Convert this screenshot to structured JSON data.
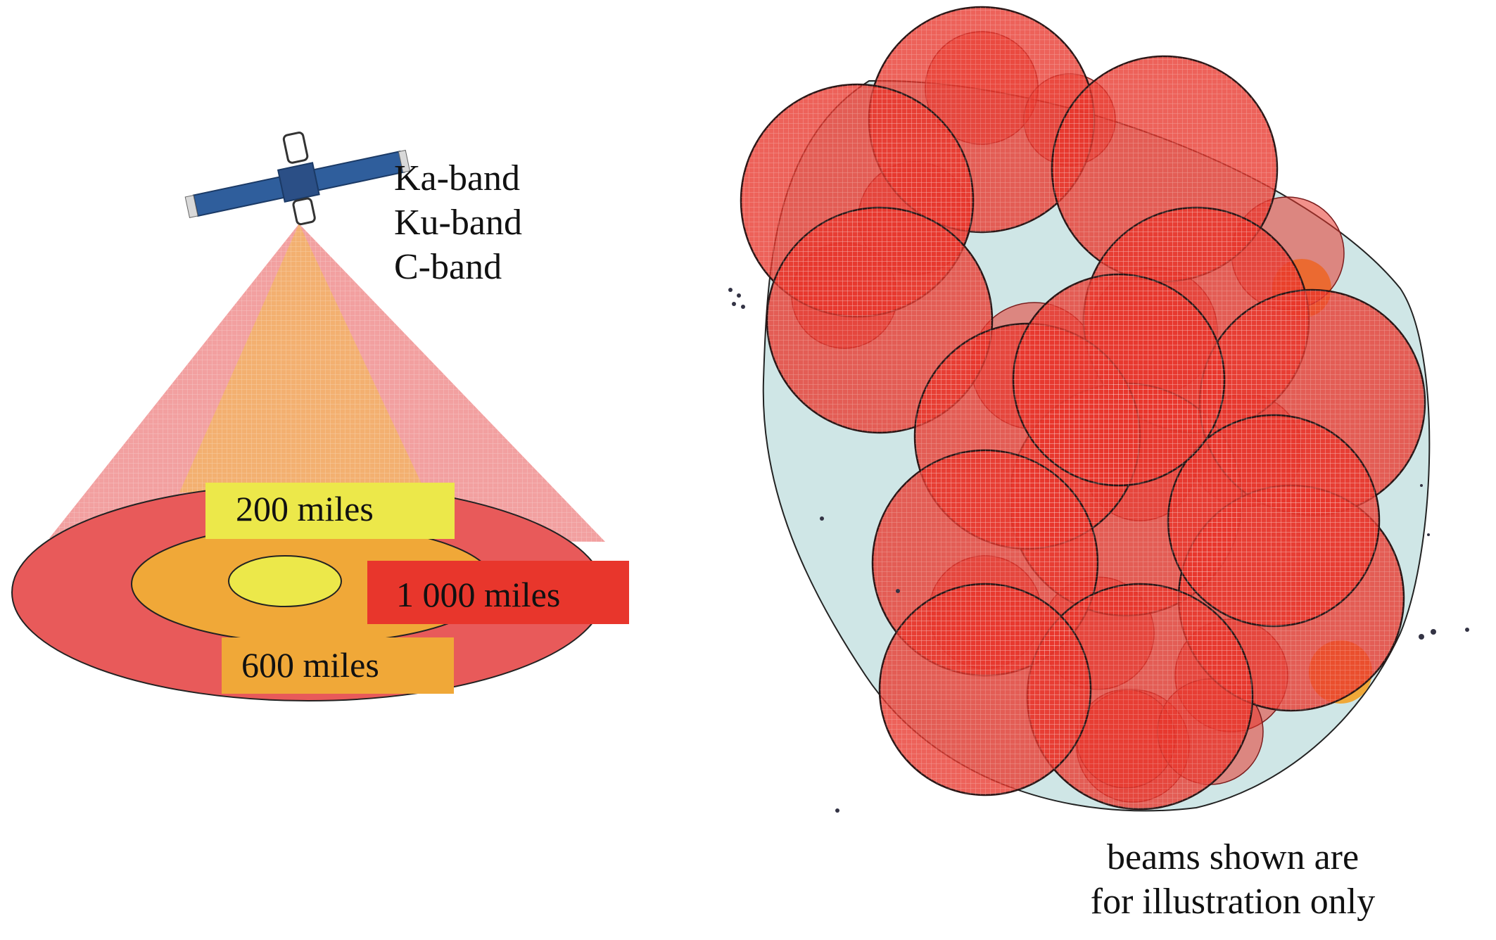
{
  "bands": [
    "Ka-band",
    "Ku-band",
    "C-band"
  ],
  "ranges": {
    "small": "200 miles",
    "large": "1 000 miles",
    "medium": "600 miles"
  },
  "caption": [
    "beams shown are",
    "for illustration only"
  ],
  "colors": {
    "outer_zone": "#e85a5a",
    "middle_zone": "#f0a838",
    "inner_zone": "#ece84a",
    "beam": "#e8362c",
    "coverage_outline": "#cfe6e6",
    "cone_outer": "#f2a0a0",
    "cone_inner": "#f3b070",
    "satellite_panel": "#2f5e9c"
  },
  "icons": [
    "satellite-icon"
  ]
}
